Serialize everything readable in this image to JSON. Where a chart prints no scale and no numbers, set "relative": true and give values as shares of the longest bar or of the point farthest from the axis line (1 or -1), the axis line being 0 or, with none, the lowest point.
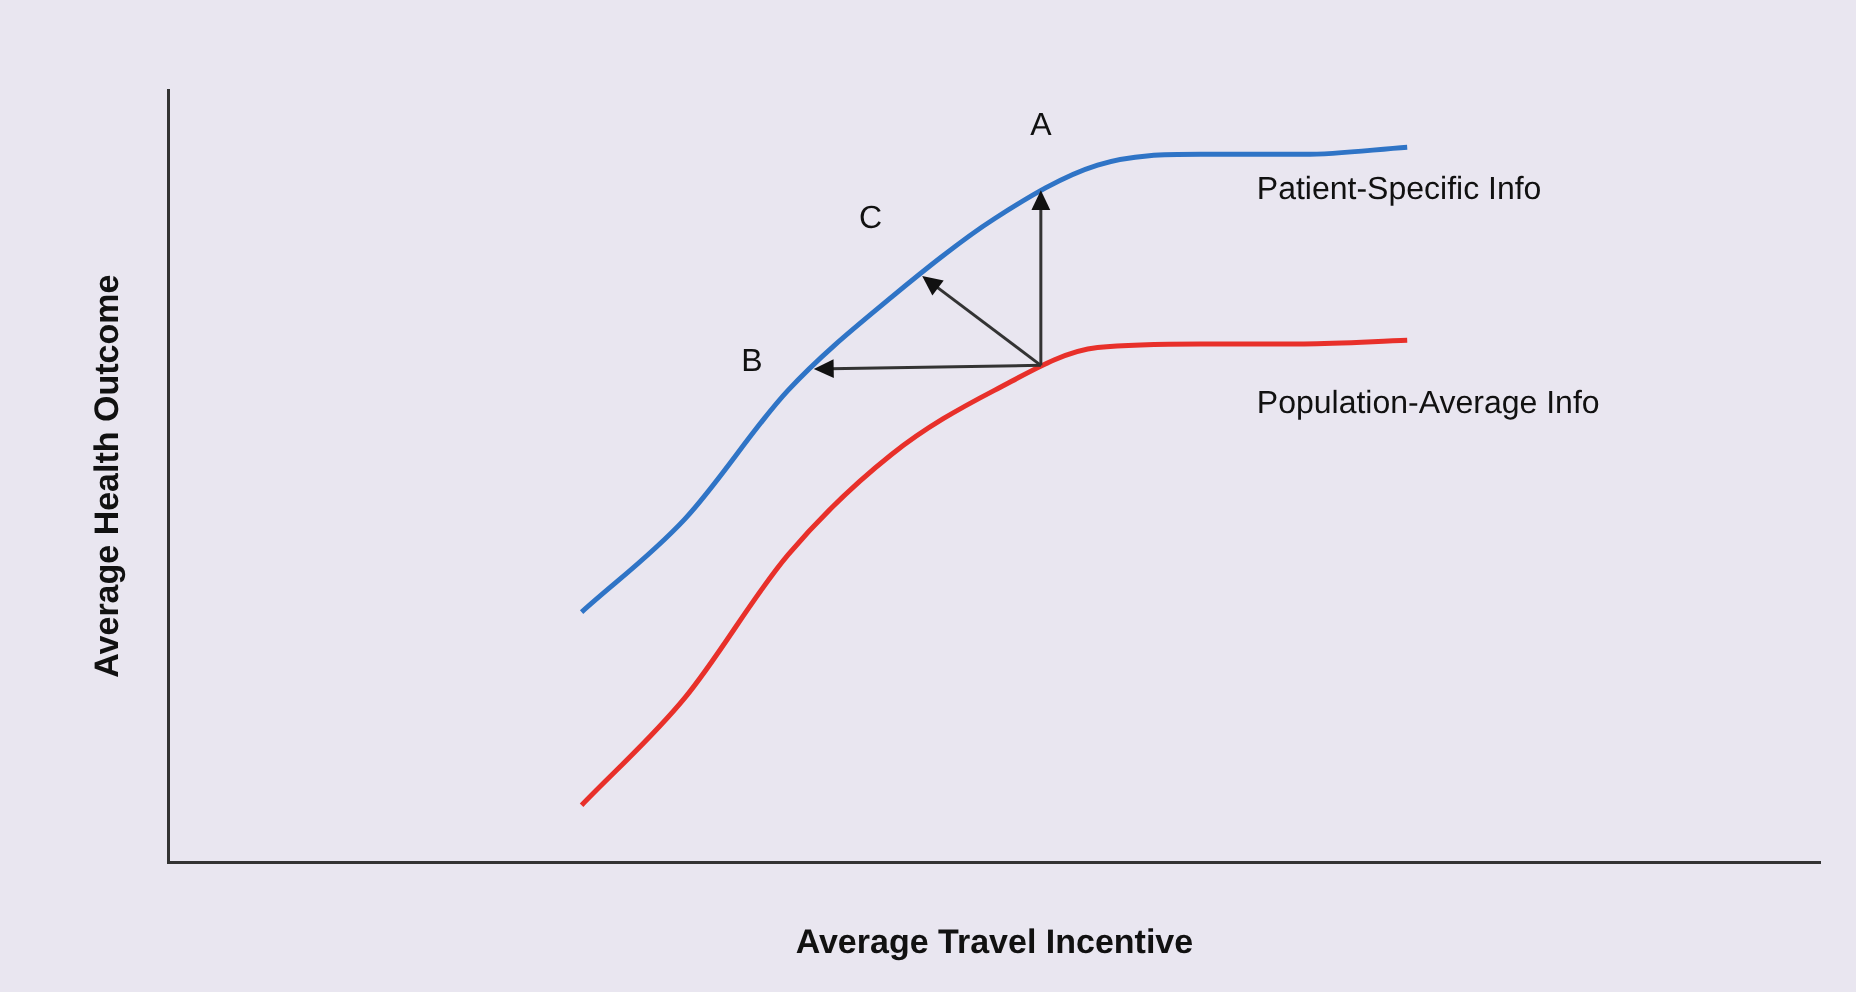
{
  "chart_data": {
    "type": "line",
    "relative": true,
    "xlabel": "Average Travel Incentive",
    "ylabel": "Average Health Outcome",
    "categories": [
      null,
      null,
      null,
      null,
      null,
      null,
      null,
      null,
      null,
      null,
      null,
      null,
      null,
      null,
      null,
      null,
      null
    ],
    "series": [
      {
        "name": "Patient-Specific Info",
        "color": "#2f74c6",
        "values": [
          null,
          null,
          null,
          null,
          0.35,
          0.48,
          0.66,
          0.79,
          0.9,
          0.975,
          0.99,
          0.99,
          1,
          null,
          null,
          null,
          null
        ]
      },
      {
        "name": "Population-Average Info",
        "color": "#e8302a",
        "values": [
          null,
          null,
          null,
          null,
          0.08,
          0.23,
          0.43,
          0.57,
          0.66,
          0.72,
          0.725,
          0.725,
          0.73,
          null,
          null,
          null,
          null
        ]
      }
    ],
    "annotations": [
      "A",
      "B",
      "C"
    ],
    "grid": false,
    "legend": false,
    "marker": "none"
  }
}
